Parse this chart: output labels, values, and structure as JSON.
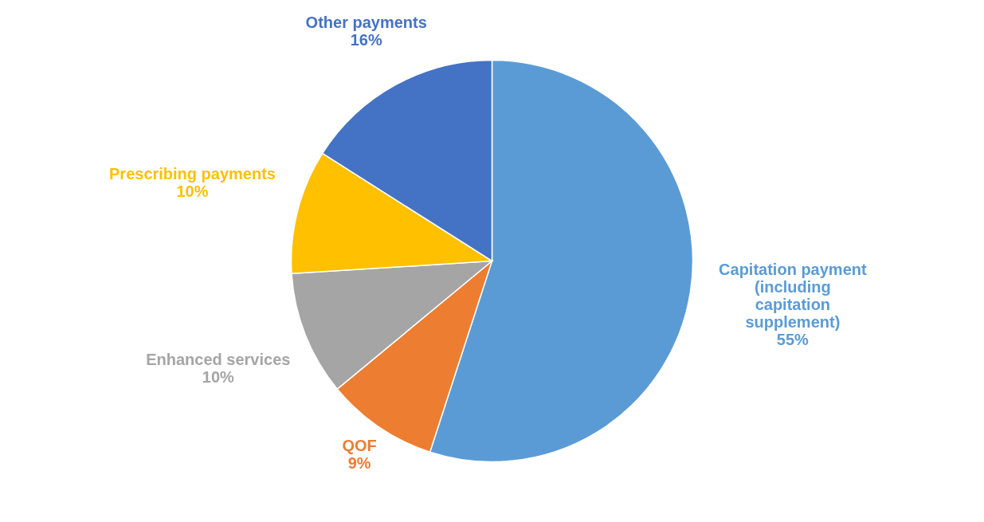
{
  "chart_data": {
    "type": "pie",
    "categories": [
      "Capitation payment (including capitation supplement)",
      "QOF",
      "Enhanced services",
      "Prescribing payments",
      "Other payments"
    ],
    "values": [
      55,
      9,
      10,
      10,
      16
    ],
    "value_labels": [
      "55%",
      "9%",
      "10%",
      "10%",
      "16%"
    ],
    "colors": [
      "#5b9bd5",
      "#ed7d31",
      "#a5a5a5",
      "#ffc000",
      "#4472c4"
    ]
  }
}
